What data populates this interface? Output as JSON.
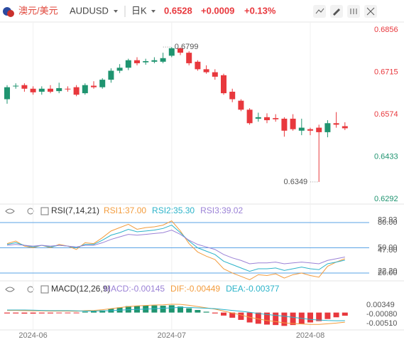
{
  "header": {
    "pair": "澳元/美元",
    "symbol": "AUDUSD",
    "period": "日K",
    "price": "0.6528",
    "change": "+0.0009",
    "change_pct": "+0.13%"
  },
  "chart_data": [
    {
      "type": "candlestick",
      "categories": [
        null,
        null,
        null,
        "2024-06",
        null,
        null,
        null,
        null,
        null,
        null,
        null,
        null,
        null,
        null,
        null,
        null,
        null,
        null,
        null,
        "2024-07",
        null,
        null,
        null,
        null,
        null,
        null,
        null,
        null,
        null,
        null,
        null,
        null,
        null,
        null,
        null,
        "2024-08",
        null,
        null,
        null,
        null
      ],
      "open": [
        0.6625,
        0.6668,
        0.6672,
        0.666,
        0.665,
        0.666,
        0.6652,
        0.666,
        0.6665,
        0.6645,
        0.667,
        0.6665,
        0.669,
        0.672,
        0.673,
        0.6755,
        0.6748,
        0.675,
        0.675,
        0.677,
        0.6795,
        0.678,
        0.675,
        0.6725,
        0.6715,
        0.6705,
        0.665,
        0.662,
        0.659,
        0.656,
        0.6565,
        0.6562,
        0.656,
        0.656,
        0.652,
        0.6525,
        0.653,
        0.6515,
        0.6545,
        0.6535
      ],
      "high": [
        0.6672,
        0.6678,
        0.6678,
        0.6668,
        0.6668,
        0.6672,
        0.668,
        0.6668,
        0.6672,
        0.6678,
        0.6685,
        0.6695,
        0.6728,
        0.6742,
        0.676,
        0.6765,
        0.676,
        0.6765,
        0.678,
        0.6799,
        0.6797,
        0.6785,
        0.6755,
        0.6738,
        0.6725,
        0.671,
        0.666,
        0.6625,
        0.6595,
        0.658,
        0.6578,
        0.6575,
        0.6565,
        0.6575,
        0.656,
        0.653,
        0.654,
        0.6555,
        0.6582,
        0.6548
      ],
      "low": [
        0.661,
        0.666,
        0.665,
        0.664,
        0.664,
        0.6645,
        0.6645,
        0.665,
        0.6635,
        0.664,
        0.666,
        0.666,
        0.668,
        0.6712,
        0.6722,
        0.6738,
        0.674,
        0.6745,
        0.6745,
        0.6765,
        0.6772,
        0.6738,
        0.672,
        0.671,
        0.669,
        0.664,
        0.6615,
        0.6585,
        0.654,
        0.655,
        0.6545,
        0.655,
        0.65,
        0.652,
        0.6505,
        0.6505,
        0.6349,
        0.6498,
        0.653,
        0.6522
      ],
      "close": [
        0.6665,
        0.667,
        0.666,
        0.6648,
        0.666,
        0.665,
        0.6662,
        0.6658,
        0.664,
        0.6672,
        0.6665,
        0.669,
        0.672,
        0.673,
        0.6755,
        0.6745,
        0.6752,
        0.6755,
        0.6762,
        0.6795,
        0.678,
        0.6745,
        0.6725,
        0.6715,
        0.67,
        0.6645,
        0.6625,
        0.659,
        0.6545,
        0.6565,
        0.6555,
        0.6558,
        0.652,
        0.6525,
        0.653,
        0.652,
        0.6515,
        0.6545,
        0.654,
        0.6528
      ],
      "up_color": "#1f9470",
      "down_color": "#e8383d",
      "ylim": [
        0.628,
        0.688
      ],
      "yticks": [
        0.6856,
        0.6715,
        0.6574,
        0.6433,
        0.6292
      ],
      "annotations": [
        {
          "value": 0.6799,
          "label": "0.6799"
        },
        {
          "value": 0.6349,
          "label": "0.6349"
        }
      ]
    },
    {
      "type": "line",
      "title": "RSI(7,14,21)",
      "series": [
        {
          "name": "RSI1:37.00",
          "color": "#f39c3d",
          "values": [
            55,
            58,
            52,
            50,
            53,
            50,
            54,
            52,
            48,
            56,
            55,
            62,
            70,
            74,
            78,
            72,
            74,
            75,
            77,
            82,
            70,
            55,
            45,
            40,
            36,
            25,
            20,
            16,
            12,
            18,
            17,
            19,
            14,
            18,
            20,
            17,
            15,
            28,
            33,
            37
          ]
        },
        {
          "name": "RSI2:35.30",
          "color": "#2bb3c9",
          "values": [
            54,
            56,
            53,
            51,
            53,
            51,
            53,
            52,
            50,
            54,
            54,
            59,
            65,
            68,
            72,
            69,
            70,
            71,
            73,
            77,
            68,
            58,
            50,
            46,
            42,
            34,
            30,
            26,
            22,
            25,
            25,
            26,
            23,
            25,
            27,
            25,
            24,
            31,
            33,
            35.3
          ]
        },
        {
          "name": "RSI3:39.02",
          "color": "#9b82d6",
          "values": [
            53,
            54,
            53,
            52,
            53,
            52,
            53,
            52,
            51,
            53,
            53,
            56,
            60,
            63,
            66,
            65,
            66,
            67,
            68,
            71,
            66,
            59,
            54,
            51,
            48,
            42,
            38,
            35,
            31,
            32,
            32,
            33,
            31,
            32,
            33,
            32,
            31,
            35,
            37,
            39.02
          ]
        }
      ],
      "ylim": [
        13.2,
        86.8
      ],
      "yticks": [
        {
          "value": 80,
          "label": "80.00"
        },
        {
          "value": 50,
          "label": "50.00"
        },
        {
          "value": 20,
          "label": "20.00"
        }
      ],
      "value_labels": [
        {
          "value": 82.93,
          "label": "82.93"
        },
        {
          "value": 47,
          "label": "47.00"
        },
        {
          "value": 22.2,
          "label": "22.20"
        }
      ],
      "line_color": "#5aa3e6"
    },
    {
      "type": "macd",
      "title": "MACD(12,26,9)",
      "histogram": {
        "name": "MACD:-0.00145",
        "up_color": "#1f9470",
        "down_color": "#e8383d",
        "values": [
          -0.0004,
          -0.0004,
          -0.0005,
          -0.0005,
          -0.0004,
          -0.0004,
          -0.0003,
          -0.0003,
          -0.0003,
          0.0004,
          0.0006,
          0.001,
          0.0018,
          0.0024,
          0.003,
          0.0032,
          0.0033,
          0.0033,
          0.0032,
          0.0034,
          0.0028,
          0.002,
          0.0012,
          0.0004,
          -0.0004,
          -0.0014,
          -0.0024,
          -0.0034,
          -0.0046,
          -0.0052,
          -0.0056,
          -0.0058,
          -0.0062,
          -0.0058,
          -0.0052,
          -0.0046,
          -0.004,
          -0.003,
          -0.0022,
          -0.00145
        ]
      },
      "series": [
        {
          "name": "DIF:-0.00449",
          "color": "#f39c3d",
          "values": [
            0.001,
            0.001,
            0.0009,
            0.0008,
            0.0008,
            0.0007,
            0.0007,
            0.0007,
            0.0006,
            0.0009,
            0.001,
            0.0013,
            0.0018,
            0.0023,
            0.0028,
            0.0031,
            0.0033,
            0.0035,
            0.0036,
            0.0039,
            0.0038,
            0.0034,
            0.0028,
            0.0022,
            0.0016,
            0.0007,
            -0.0002,
            -0.0011,
            -0.0022,
            -0.003,
            -0.0037,
            -0.0042,
            -0.0048,
            -0.0051,
            -0.0053,
            -0.0055,
            -0.0055,
            -0.0052,
            -0.0049,
            -0.00449
          ]
        },
        {
          "name": "DEA:-0.00377",
          "color": "#2bb3c9",
          "values": [
            0.0012,
            0.0012,
            0.0012,
            0.0011,
            0.001,
            0.0009,
            0.0009,
            0.0009,
            0.0008,
            0.0007,
            0.0007,
            0.0008,
            0.0009,
            0.0011,
            0.0013,
            0.0015,
            0.0016,
            0.0018,
            0.002,
            0.0022,
            0.0024,
            0.0024,
            0.0022,
            0.002,
            0.0018,
            0.0014,
            0.001,
            0.0006,
            0.0001,
            -0.0004,
            -0.0009,
            -0.0013,
            -0.0017,
            -0.0022,
            -0.0027,
            -0.0032,
            -0.0035,
            -0.0037,
            -0.0038,
            -0.00377
          ]
        }
      ],
      "ylim": [
        -0.0084,
        0.0131
      ],
      "yticks": [
        0.00349,
        {
          "value": -0.0008,
          "label": "-0.00080"
        },
        {
          "value": -0.0051,
          "label": "-0.00510"
        }
      ]
    }
  ]
}
